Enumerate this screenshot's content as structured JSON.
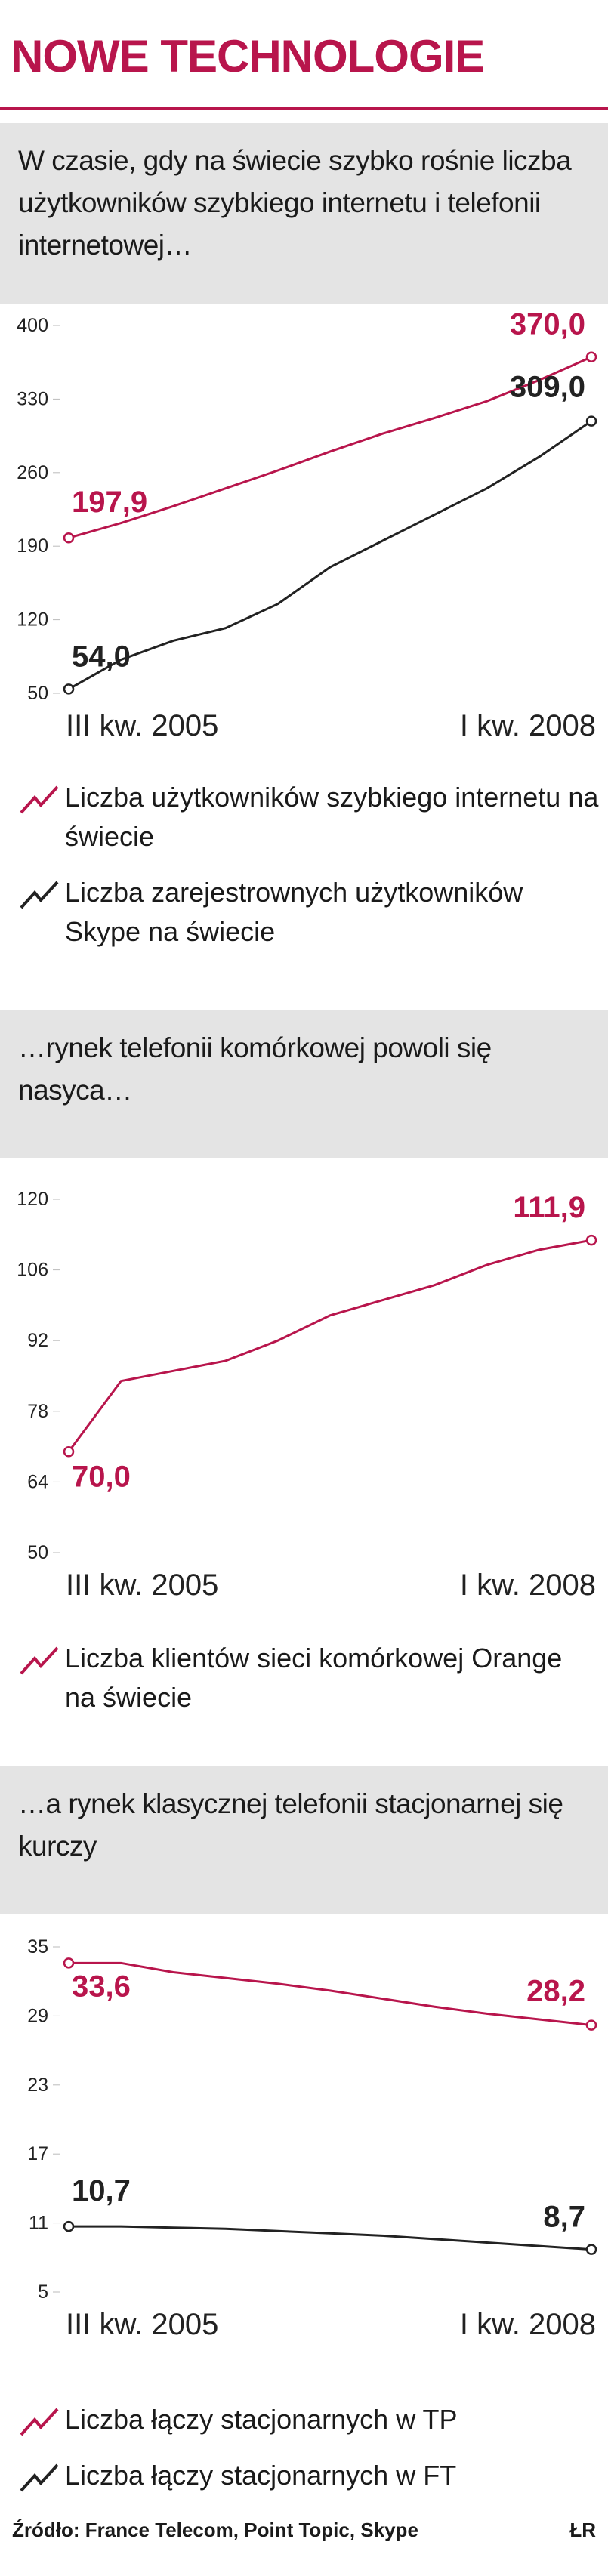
{
  "title": "NOWE TECHNOLOGIE",
  "source": "Źródło: France Telecom, Point Topic, Skype",
  "credit": "ŁR",
  "chart_data": [
    {
      "type": "line",
      "title": "W czasie, gdy na świecie szybko rośnie liczba użytkowników szybkiego internetu i telefonii internetowej…",
      "categories": [
        "III kw. 2005",
        null,
        null,
        null,
        null,
        null,
        null,
        null,
        null,
        null,
        "I kw. 2008"
      ],
      "ylim": [
        50,
        400
      ],
      "yticks": [
        50,
        120,
        190,
        260,
        330,
        400
      ],
      "grid": false,
      "series": [
        {
          "name": "Liczba użytkowników szybkiego internetu na świecie",
          "color": "#b8154c",
          "values": [
            197.9,
            212,
            228,
            245,
            262,
            280,
            297,
            312,
            328,
            348,
            370.0
          ],
          "value_labels": [
            "197,9",
            null,
            null,
            null,
            null,
            null,
            null,
            null,
            null,
            null,
            "370,0"
          ]
        },
        {
          "name": "Liczba zarejestrownych użytkowników Skype na świecie",
          "color": "#222222",
          "values": [
            54.0,
            82,
            100,
            112,
            135,
            170,
            195,
            220,
            245,
            275,
            309.0
          ],
          "value_labels": [
            "54,0",
            null,
            null,
            null,
            null,
            null,
            null,
            null,
            null,
            null,
            "309,0"
          ]
        }
      ]
    },
    {
      "type": "line",
      "title": "…rynek telefonii komórkowej powoli się nasyca…",
      "categories": [
        "III kw. 2005",
        null,
        null,
        null,
        null,
        null,
        null,
        null,
        null,
        null,
        "I kw. 2008"
      ],
      "ylim": [
        50,
        120
      ],
      "yticks": [
        50,
        64,
        78,
        92,
        106,
        120
      ],
      "grid": false,
      "series": [
        {
          "name": "Liczba klientów sieci komórkowej Orange na świecie",
          "color": "#b8154c",
          "values": [
            70.0,
            84,
            86,
            88,
            92,
            97,
            100,
            103,
            107,
            110,
            111.9
          ],
          "value_labels": [
            "70,0",
            null,
            null,
            null,
            null,
            null,
            null,
            null,
            null,
            null,
            "111,9"
          ]
        }
      ]
    },
    {
      "type": "line",
      "title": "…a rynek klasycznej telefonii stacjonarnej się kurczy",
      "categories": [
        "III kw. 2005",
        null,
        null,
        null,
        null,
        null,
        null,
        null,
        null,
        null,
        "I kw. 2008"
      ],
      "ylim": [
        5,
        35
      ],
      "yticks": [
        5,
        11,
        17,
        23,
        29,
        35
      ],
      "grid": false,
      "series": [
        {
          "name": "Liczba łączy stacjonarnych w TP",
          "color": "#b8154c",
          "values": [
            33.6,
            33.6,
            32.8,
            32.3,
            31.8,
            31.2,
            30.5,
            29.8,
            29.2,
            28.7,
            28.2
          ],
          "value_labels": [
            "33,6",
            null,
            null,
            null,
            null,
            null,
            null,
            null,
            null,
            null,
            "28,2"
          ]
        },
        {
          "name": "Liczba łączy stacjonarnych w FT",
          "color": "#222222",
          "values": [
            10.7,
            10.7,
            10.6,
            10.5,
            10.3,
            10.1,
            9.9,
            9.6,
            9.3,
            9.0,
            8.7
          ],
          "value_labels": [
            "10,7",
            null,
            null,
            null,
            null,
            null,
            null,
            null,
            null,
            null,
            "8,7"
          ]
        }
      ]
    }
  ]
}
